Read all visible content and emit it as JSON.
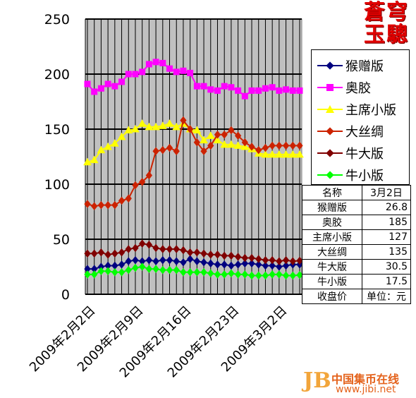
{
  "brand": {
    "line1": "蒼穹",
    "line2": "玉驄"
  },
  "watermark": {
    "logo": "JB",
    "name": "中国集币在线",
    "url": "www.jibi.net"
  },
  "chart_data": {
    "type": "line",
    "ylim": [
      0,
      250
    ],
    "yticks": [
      0,
      50,
      100,
      150,
      200,
      250
    ],
    "xtick_labels": [
      "2009年2月2日",
      "2009年2月9日",
      "2009年2月16日",
      "2009年2月23日",
      "2009年3月2日"
    ],
    "xtick_index": [
      0,
      7,
      14,
      21,
      28
    ],
    "n_points": 32,
    "grid": true,
    "plot_background": "#c0c0c0",
    "legend_position": "right",
    "series": [
      {
        "name": "猴赠版",
        "color": "#000080",
        "marker": "diamond",
        "values": [
          23,
          23,
          25,
          26,
          26,
          27,
          30,
          31,
          30,
          31,
          30,
          31,
          31,
          30,
          29,
          32,
          30,
          29,
          28,
          27,
          27,
          26,
          27,
          28,
          28,
          27,
          26,
          26,
          25,
          26,
          27,
          27
        ]
      },
      {
        "name": "奥胶",
        "color": "#ff00ff",
        "marker": "square",
        "values": [
          191,
          184,
          187,
          191,
          189,
          193,
          200,
          200,
          202,
          209,
          211,
          210,
          205,
          202,
          203,
          201,
          189,
          189,
          186,
          185,
          189,
          188,
          185,
          180,
          185,
          185,
          187,
          188,
          185,
          186,
          185,
          185
        ]
      },
      {
        "name": "主席小版",
        "color": "#ffff00",
        "marker": "triangle",
        "values": [
          120,
          122,
          131,
          134,
          137,
          143,
          149,
          150,
          155,
          152,
          152,
          153,
          155,
          152,
          155,
          150,
          149,
          140,
          144,
          140,
          136,
          136,
          135,
          134,
          132,
          128,
          127,
          127,
          127,
          127,
          127,
          127
        ]
      },
      {
        "name": "大丝绸",
        "color": "#cc2200",
        "marker": "diamond",
        "values": [
          82,
          80,
          81,
          81,
          81,
          85,
          87,
          99,
          102,
          108,
          130,
          131,
          133,
          130,
          158,
          150,
          138,
          130,
          135,
          145,
          145,
          149,
          144,
          138,
          134,
          131,
          133,
          135,
          135,
          135,
          135,
          135
        ]
      },
      {
        "name": "牛大版",
        "color": "#800000",
        "marker": "diamond",
        "values": [
          37,
          37,
          38,
          36,
          37,
          38,
          41,
          42,
          46,
          45,
          42,
          41,
          41,
          41,
          40,
          38,
          38,
          37,
          36,
          36,
          35,
          35,
          34,
          33,
          33,
          32,
          31,
          31,
          30,
          31,
          30,
          30.5
        ]
      },
      {
        "name": "牛小版",
        "color": "#00ff00",
        "marker": "diamond",
        "values": [
          18,
          18,
          21,
          21,
          20,
          20,
          22,
          24,
          25,
          23,
          23,
          22,
          22,
          22,
          20,
          20,
          20,
          20,
          19,
          18,
          18,
          19,
          18,
          18,
          17,
          17,
          17,
          18,
          18,
          17,
          17,
          17.5
        ]
      }
    ]
  },
  "table": {
    "header": [
      "名称",
      "3月2日"
    ],
    "rows": [
      [
        "猴赠版",
        "26.8"
      ],
      [
        "奥胶",
        "185"
      ],
      [
        "主席小版",
        "127"
      ],
      [
        "大丝绸",
        "135"
      ],
      [
        "牛大版",
        "30.5"
      ],
      [
        "牛小版",
        "17.5"
      ],
      [
        "收盘价",
        "单位：元"
      ]
    ]
  }
}
